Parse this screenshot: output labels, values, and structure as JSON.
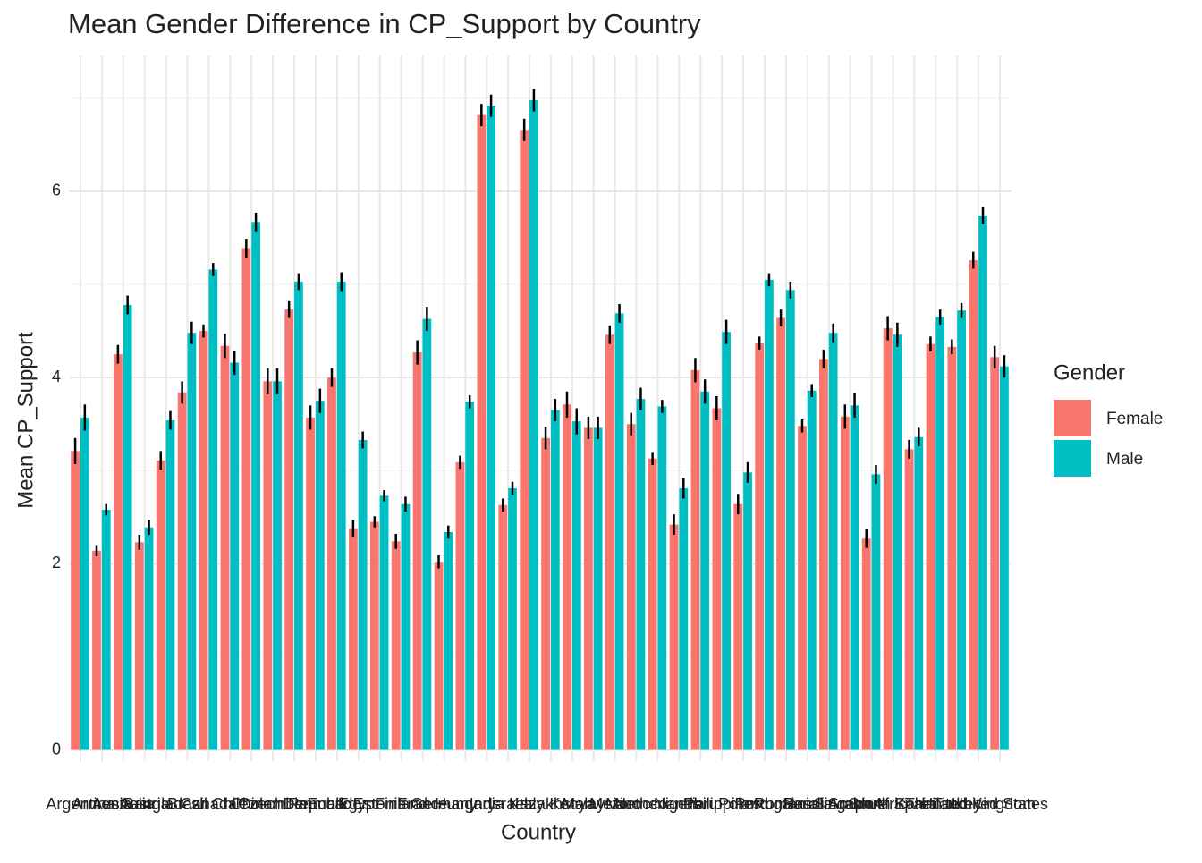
{
  "chart_data": {
    "type": "bar",
    "title": "Mean Gender Difference in CP_Support by Country",
    "x_label": "Country",
    "y_label": "Mean CP_Support",
    "legend_title": "Gender",
    "legend_position": "right",
    "categories": [
      "Argentina",
      "Armenia",
      "Australia",
      "Austria",
      "Bangladesh",
      "Brazil",
      "Canada",
      "Chile",
      "China",
      "Colombia",
      "Czech Republic",
      "Denmark",
      "Ecuador",
      "Egypt",
      "Estonia",
      "Finland",
      "France",
      "Germany",
      "Hungary",
      "India",
      "Israel",
      "Italy",
      "Kazakhstan",
      "Kenya",
      "Malaysia",
      "Mexico",
      "Morocco",
      "Netherlands",
      "Nigeria",
      "Peru",
      "Philippines",
      "Poland",
      "Portugal",
      "Romania",
      "Russia",
      "Saudi Arabia",
      "Singapore",
      "South Africa",
      "South Korea",
      "Spain",
      "Thailand",
      "Turkey",
      "United Kingdom",
      "United States"
    ],
    "series": [
      {
        "name": "Female",
        "color": "#f8766d",
        "values": [
          3.21,
          2.14,
          4.25,
          2.23,
          3.11,
          3.84,
          4.5,
          4.34,
          5.39,
          3.96,
          4.73,
          3.57,
          4.0,
          2.38,
          2.45,
          2.24,
          4.27,
          2.02,
          3.09,
          6.82,
          2.63,
          6.66,
          3.35,
          3.71,
          3.46,
          4.46,
          3.5,
          3.13,
          2.42,
          4.08,
          3.67,
          2.64,
          4.37,
          4.64,
          3.48,
          4.2,
          3.58,
          2.27,
          4.53,
          3.23,
          4.36,
          4.33,
          5.26,
          4.22
        ],
        "errors": [
          0.14,
          0.06,
          0.1,
          0.08,
          0.1,
          0.12,
          0.07,
          0.13,
          0.1,
          0.14,
          0.09,
          0.13,
          0.1,
          0.09,
          0.06,
          0.08,
          0.13,
          0.07,
          0.07,
          0.12,
          0.07,
          0.12,
          0.12,
          0.14,
          0.12,
          0.1,
          0.12,
          0.07,
          0.11,
          0.13,
          0.13,
          0.11,
          0.07,
          0.09,
          0.07,
          0.1,
          0.13,
          0.1,
          0.13,
          0.1,
          0.08,
          0.08,
          0.09,
          0.12
        ]
      },
      {
        "name": "Male",
        "color": "#00bfc4",
        "values": [
          3.57,
          2.58,
          4.78,
          2.39,
          3.54,
          4.48,
          5.16,
          4.16,
          5.67,
          3.96,
          5.03,
          3.75,
          5.03,
          3.33,
          2.73,
          2.64,
          4.63,
          2.34,
          3.74,
          6.92,
          2.81,
          6.98,
          3.65,
          3.53,
          3.46,
          4.69,
          3.77,
          3.69,
          2.81,
          3.85,
          4.49,
          2.98,
          5.05,
          4.94,
          3.86,
          4.48,
          3.7,
          2.96,
          4.46,
          3.36,
          4.65,
          4.72,
          5.74,
          4.12
        ]
      },
      "errors_placeholder"
    ],
    "ylim": [
      -0.12,
      7.46
    ],
    "yticks": [
      0,
      2,
      4,
      6
    ],
    "yminor": [
      1,
      3,
      5,
      7
    ],
    "grid": true
  }
}
